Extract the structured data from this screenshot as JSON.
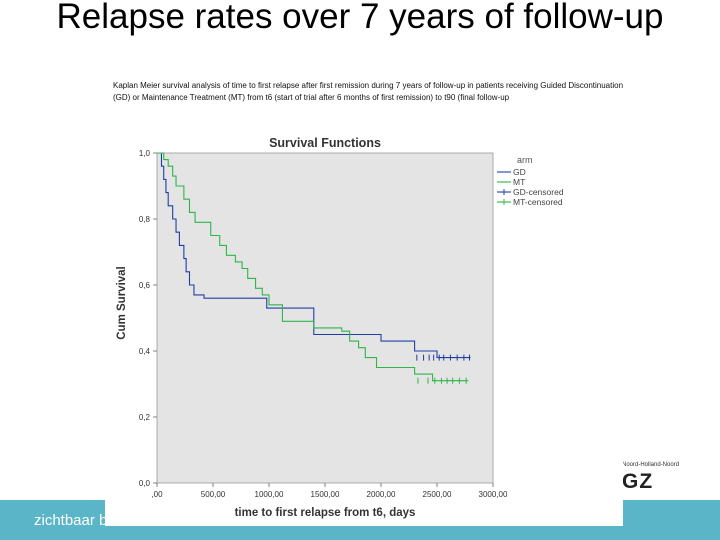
{
  "slide": {
    "title": "Relapse rates over 7 years of follow-up",
    "subtitle": "Kaplan Meier survival analysis of time to first relapse after first remission during 7 years of follow-up in patients receiving Guided Discontinuation (GD) or Maintenance Treatment (MT) from t6 (start of trial after 6 months of first remission) to t90 (final follow-up",
    "footer_text": "zichtbaar b",
    "logo_sub": "Noord-Holland-Noord",
    "logo_main": "GZ",
    "colors": {
      "footer": "#5bb5c8",
      "plot_bg": "#e4e4e4",
      "gd": "#1f3fa6",
      "mt": "#2fb54a"
    }
  },
  "chart_data": {
    "type": "line",
    "title": "Survival Functions",
    "xlabel": "time to first relapse from t6, days",
    "ylabel": "Cum Survival",
    "xlim": [
      0,
      3000
    ],
    "ylim": [
      0,
      1.0
    ],
    "x_ticks": [
      0,
      500,
      1000,
      1500,
      2000,
      2500,
      3000
    ],
    "x_tick_labels": [
      ",00",
      "500,00",
      "1000,00",
      "1500,00",
      "2000,00",
      "2500,00",
      "3000,00"
    ],
    "y_ticks": [
      0,
      0.2,
      0.4,
      0.6,
      0.8,
      1.0
    ],
    "y_tick_labels": [
      "0,0",
      "0,2",
      "0,4",
      "0,6",
      "0,8",
      "1,0"
    ],
    "legend_title": "arm",
    "legend_placement": "right",
    "legend": [
      "GD",
      "MT",
      "GD-censored",
      "MT-censored"
    ],
    "grid": false,
    "series": [
      {
        "name": "GD",
        "color": "#1f3fa6",
        "steps": [
          [
            0,
            1.0
          ],
          [
            40,
            0.96
          ],
          [
            60,
            0.92
          ],
          [
            80,
            0.88
          ],
          [
            100,
            0.84
          ],
          [
            140,
            0.8
          ],
          [
            170,
            0.76
          ],
          [
            200,
            0.72
          ],
          [
            240,
            0.68
          ],
          [
            260,
            0.64
          ],
          [
            290,
            0.6
          ],
          [
            330,
            0.57
          ],
          [
            420,
            0.56
          ],
          [
            980,
            0.53
          ],
          [
            1400,
            0.45
          ],
          [
            2000,
            0.43
          ],
          [
            2300,
            0.4
          ],
          [
            2500,
            0.38
          ]
        ],
        "end_x": 2800,
        "censored": [
          2320,
          2380,
          2430,
          2470,
          2520,
          2560,
          2620,
          2680,
          2740,
          2790
        ]
      },
      {
        "name": "MT",
        "color": "#2fb54a",
        "steps": [
          [
            0,
            1.0
          ],
          [
            60,
            0.98
          ],
          [
            100,
            0.96
          ],
          [
            140,
            0.93
          ],
          [
            170,
            0.9
          ],
          [
            240,
            0.86
          ],
          [
            290,
            0.82
          ],
          [
            340,
            0.79
          ],
          [
            480,
            0.75
          ],
          [
            560,
            0.72
          ],
          [
            620,
            0.69
          ],
          [
            700,
            0.67
          ],
          [
            760,
            0.65
          ],
          [
            810,
            0.62
          ],
          [
            880,
            0.59
          ],
          [
            940,
            0.57
          ],
          [
            1000,
            0.54
          ],
          [
            1120,
            0.49
          ],
          [
            1400,
            0.47
          ],
          [
            1650,
            0.46
          ],
          [
            1720,
            0.43
          ],
          [
            1800,
            0.41
          ],
          [
            1860,
            0.38
          ],
          [
            1960,
            0.35
          ],
          [
            2300,
            0.33
          ],
          [
            2460,
            0.31
          ]
        ],
        "end_x": 2780,
        "censored": [
          2330,
          2420,
          2480,
          2540,
          2590,
          2640,
          2700,
          2760
        ]
      }
    ]
  }
}
